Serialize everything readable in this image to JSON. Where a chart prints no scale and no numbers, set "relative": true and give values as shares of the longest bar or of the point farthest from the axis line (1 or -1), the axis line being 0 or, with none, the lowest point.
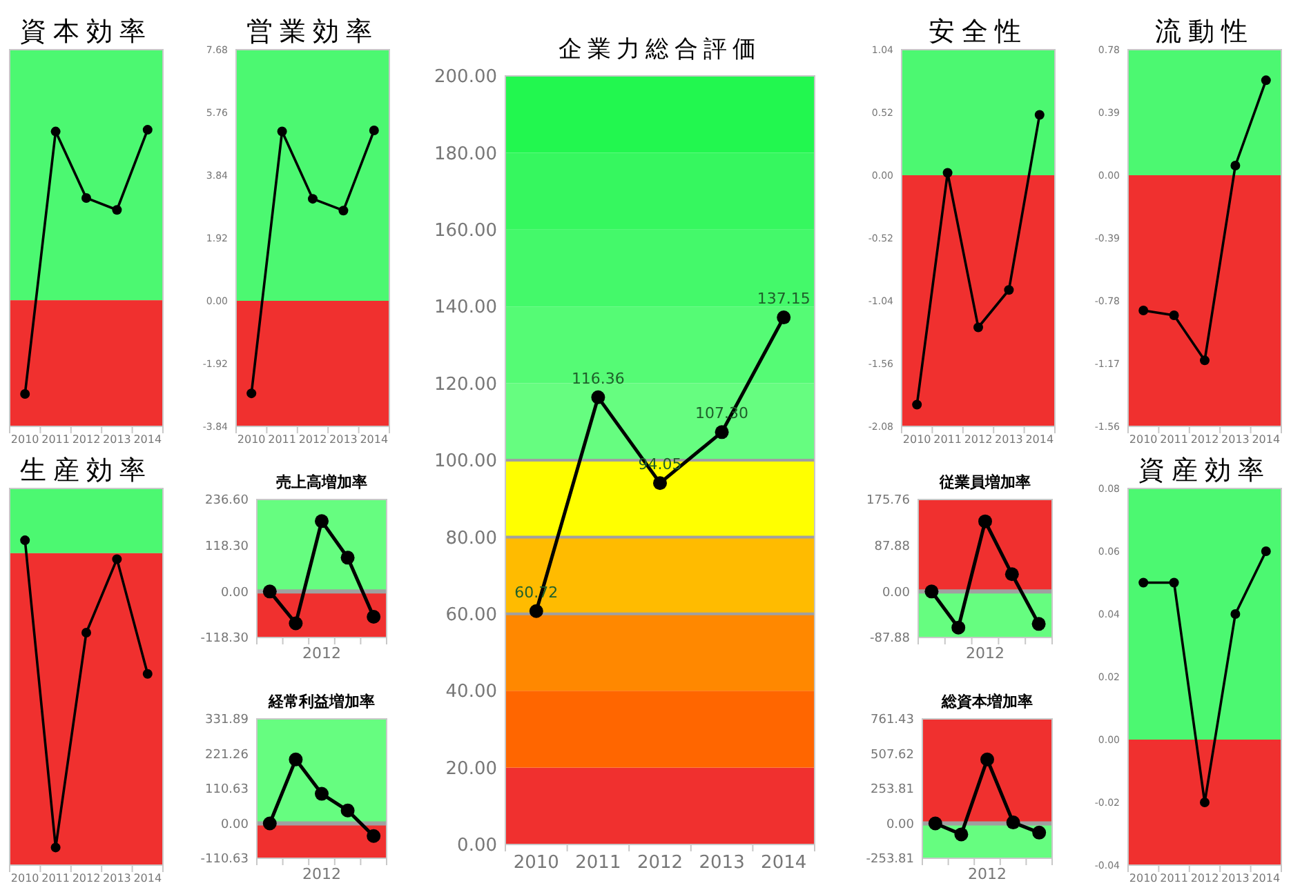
{
  "chart_data": [
    {
      "type": "line",
      "title": "資本効率",
      "relative": true,
      "tick_labels": "x",
      "categories": [
        "2010",
        "2011",
        "2012",
        "2013",
        "2014"
      ],
      "values": [
        -0.55,
        0.99,
        0.6,
        0.53,
        1.0
      ],
      "color": "#000000",
      "marker": "circle",
      "bands": [
        {
          "axis": "y",
          "from": 0,
          "to": 1.47,
          "color": "#4cf871"
        },
        {
          "axis": "y",
          "from": -0.74,
          "to": 0,
          "color": "#f0302f"
        }
      ]
    },
    {
      "type": "line",
      "title": "営業効率",
      "categories": [
        "2010",
        "2011",
        "2012",
        "2013",
        "2014"
      ],
      "values": [
        -2.83,
        5.18,
        3.12,
        2.76,
        5.21
      ],
      "color": "#000000",
      "marker": "circle",
      "ylim": [
        -3.84,
        7.68
      ],
      "yticks": [
        {
          "value": -3.84,
          "label": "-3.84"
        },
        {
          "value": -1.92,
          "label": "-1.92"
        },
        {
          "value": 0,
          "label": "0.00"
        },
        {
          "value": 1.92,
          "label": "1.92"
        },
        {
          "value": 3.84,
          "label": "3.84"
        },
        {
          "value": 5.76,
          "label": "5.76"
        },
        {
          "value": 7.68,
          "label": "7.68"
        }
      ],
      "bands": [
        {
          "axis": "y",
          "from": 0,
          "to": 7.68,
          "color": "#4cf871"
        },
        {
          "axis": "y",
          "from": -3.84,
          "to": 0,
          "color": "#f0302f"
        }
      ]
    },
    {
      "type": "line",
      "title": "企業力総合評価",
      "categories": [
        "2010",
        "2011",
        "2012",
        "2013",
        "2014"
      ],
      "values": [
        60.72,
        116.36,
        94.05,
        107.3,
        137.15
      ],
      "value_labels": [
        "60.72",
        "116.36",
        "94.05",
        "107.30",
        "137.15"
      ],
      "color": "#000000",
      "marker": "circle",
      "ylim": [
        0,
        200
      ],
      "yticks": [
        {
          "value": 0,
          "label": "0.00"
        },
        {
          "value": 20,
          "label": "20.00"
        },
        {
          "value": 40,
          "label": "40.00"
        },
        {
          "value": 60,
          "label": "60.00"
        },
        {
          "value": 80,
          "label": "80.00"
        },
        {
          "value": 100,
          "label": "100.00"
        },
        {
          "value": 120,
          "label": "120.00"
        },
        {
          "value": 140,
          "label": "140.00"
        },
        {
          "value": 160,
          "label": "160.00"
        },
        {
          "value": 180,
          "label": "180.00"
        },
        {
          "value": 200,
          "label": "200.00"
        }
      ],
      "bands": [
        {
          "axis": "y",
          "from": 0,
          "to": 20,
          "color": "#f0302f"
        },
        {
          "axis": "y",
          "from": 20,
          "to": 40,
          "color": "#ff6600"
        },
        {
          "axis": "y",
          "from": 40,
          "to": 60,
          "color": "#ff8800"
        },
        {
          "axis": "y",
          "from": 60,
          "to": 80,
          "color": "#ffbb00"
        },
        {
          "axis": "y",
          "from": 80,
          "to": 100,
          "color": "#ffff00"
        },
        {
          "axis": "y",
          "from": 100,
          "to": 120,
          "color": "#66fd80"
        },
        {
          "axis": "y",
          "from": 120,
          "to": 140,
          "color": "#55fb75"
        },
        {
          "axis": "y",
          "from": 140,
          "to": 160,
          "color": "#44f96a"
        },
        {
          "axis": "y",
          "from": 160,
          "to": 180,
          "color": "#36f75f"
        },
        {
          "axis": "y",
          "from": 180,
          "to": 200,
          "color": "#22f74f"
        }
      ],
      "ref_lines": [
        {
          "axis": "y",
          "value": 60,
          "color": "#a0a0a0"
        },
        {
          "axis": "y",
          "value": 80,
          "color": "#a0a0a0"
        },
        {
          "axis": "y",
          "value": 100,
          "color": "#a0a0a0"
        }
      ]
    },
    {
      "type": "line",
      "title": "安全性",
      "categories": [
        "2010",
        "2011",
        "2012",
        "2013",
        "2014"
      ],
      "values": [
        -1.9,
        0.02,
        -1.26,
        -0.95,
        0.5
      ],
      "color": "#000000",
      "marker": "circle",
      "ylim": [
        -2.08,
        1.04
      ],
      "yticks": [
        {
          "value": -2.08,
          "label": "-2.08"
        },
        {
          "value": -1.56,
          "label": "-1.56"
        },
        {
          "value": -1.04,
          "label": "-1.04"
        },
        {
          "value": -0.52,
          "label": "-0.52"
        },
        {
          "value": 0,
          "label": "0.00"
        },
        {
          "value": 0.52,
          "label": "0.52"
        },
        {
          "value": 1.04,
          "label": "1.04"
        }
      ],
      "bands": [
        {
          "axis": "y",
          "from": 0,
          "to": 1.04,
          "color": "#4cf871"
        },
        {
          "axis": "y",
          "from": -2.08,
          "to": 0,
          "color": "#f0302f"
        }
      ]
    },
    {
      "type": "line",
      "title": "流動性",
      "categories": [
        "2010",
        "2011",
        "2012",
        "2013",
        "2014"
      ],
      "values": [
        -0.84,
        -0.87,
        -1.15,
        0.06,
        0.59
      ],
      "color": "#000000",
      "marker": "circle",
      "ylim": [
        -1.56,
        0.78
      ],
      "yticks": [
        {
          "value": -1.56,
          "label": "-1.56"
        },
        {
          "value": -1.17,
          "label": "-1.17"
        },
        {
          "value": -0.78,
          "label": "-0.78"
        },
        {
          "value": -0.39,
          "label": "-0.39"
        },
        {
          "value": 0,
          "label": "0.00"
        },
        {
          "value": 0.39,
          "label": "0.39"
        },
        {
          "value": 0.78,
          "label": "0.78"
        }
      ],
      "bands": [
        {
          "axis": "y",
          "from": 0,
          "to": 0.78,
          "color": "#4cf871"
        },
        {
          "axis": "y",
          "from": -1.56,
          "to": 0,
          "color": "#f0302f"
        }
      ]
    },
    {
      "type": "line",
      "title": "生産効率",
      "relative": true,
      "tick_labels": "x",
      "categories": [
        "2010",
        "2011",
        "2012",
        "2013",
        "2014"
      ],
      "values": [
        0.044,
        -1,
        -0.27,
        -0.02,
        -0.41
      ],
      "color": "#000000",
      "marker": "circle",
      "bands": [
        {
          "axis": "y",
          "from": 0,
          "to": 0.22,
          "color": "#4cf871"
        },
        {
          "axis": "y",
          "from": -1.06,
          "to": 0,
          "color": "#f0302f"
        }
      ]
    },
    {
      "type": "line",
      "title": "売上高増加率",
      "categories": [
        null,
        null,
        "2012",
        null,
        null
      ],
      "values": [
        0,
        -82,
        181,
        87,
        -65
      ],
      "color": "#000000",
      "marker": "circle",
      "ylim": [
        -118.3,
        236.6
      ],
      "yticks": [
        {
          "value": -118.3,
          "label": "-118.30"
        },
        {
          "value": 0,
          "label": "0.00"
        },
        {
          "value": 118.3,
          "label": "118.30"
        },
        {
          "value": 236.6,
          "label": "236.60"
        }
      ],
      "bands": [
        {
          "axis": "y",
          "from": 0,
          "to": 236.6,
          "color": "#66fd80"
        },
        {
          "axis": "y",
          "from": -118.3,
          "to": 0,
          "color": "#f0302f"
        }
      ],
      "ref_lines": [
        {
          "axis": "y",
          "value": 0,
          "color": "#a0a0a0"
        }
      ]
    },
    {
      "type": "line",
      "title": "従業員増加率",
      "categories": [
        null,
        null,
        "2012",
        null,
        null
      ],
      "values": [
        0,
        -69,
        134,
        33,
        -62
      ],
      "color": "#000000",
      "marker": "circle",
      "ylim": [
        -87.88,
        175.76
      ],
      "yticks": [
        {
          "value": -87.88,
          "label": "-87.88"
        },
        {
          "value": 0,
          "label": "0.00"
        },
        {
          "value": 87.88,
          "label": "87.88"
        },
        {
          "value": 175.76,
          "label": "175.76"
        }
      ],
      "bands": [
        {
          "axis": "y",
          "from": 0,
          "to": 175.76,
          "color": "#f0302f"
        },
        {
          "axis": "y",
          "from": -87.88,
          "to": 0,
          "color": "#66fd80"
        }
      ],
      "ref_lines": [
        {
          "axis": "y",
          "value": 0,
          "color": "#a0a0a0"
        }
      ]
    },
    {
      "type": "line",
      "title": "資産効率",
      "categories": [
        "2010",
        "2011",
        "2012",
        "2013",
        "2014"
      ],
      "values": [
        0.05,
        0.05,
        -0.02,
        0.04,
        0.06
      ],
      "color": "#000000",
      "marker": "circle",
      "ylim": [
        -0.04,
        0.08
      ],
      "yticks": [
        {
          "value": -0.04,
          "label": "-0.04"
        },
        {
          "value": -0.02,
          "label": "-0.02"
        },
        {
          "value": 0,
          "label": "0.00"
        },
        {
          "value": 0.02,
          "label": "0.02"
        },
        {
          "value": 0.04,
          "label": "0.04"
        },
        {
          "value": 0.06,
          "label": "0.06"
        },
        {
          "value": 0.08,
          "label": "0.08"
        }
      ],
      "bands": [
        {
          "axis": "y",
          "from": 0,
          "to": 0.08,
          "color": "#4cf871"
        },
        {
          "axis": "y",
          "from": -0.04,
          "to": 0,
          "color": "#f0302f"
        }
      ]
    },
    {
      "type": "line",
      "title": "経常利益増加率",
      "categories": [
        null,
        null,
        "2012",
        null,
        null
      ],
      "values": [
        0,
        203,
        94,
        41,
        -40
      ],
      "color": "#000000",
      "marker": "circle",
      "ylim": [
        -110.63,
        331.89
      ],
      "yticks": [
        {
          "value": -110.63,
          "label": "-110.63"
        },
        {
          "value": 0,
          "label": "0.00"
        },
        {
          "value": 110.63,
          "label": "110.63"
        },
        {
          "value": 221.26,
          "label": "221.26"
        },
        {
          "value": 331.89,
          "label": "331.89"
        }
      ],
      "bands": [
        {
          "axis": "y",
          "from": 0,
          "to": 331.89,
          "color": "#66fd80"
        },
        {
          "axis": "y",
          "from": -110.63,
          "to": 0,
          "color": "#f0302f"
        }
      ],
      "ref_lines": [
        {
          "axis": "y",
          "value": 0,
          "color": "#a0a0a0"
        }
      ]
    },
    {
      "type": "line",
      "title": "総資本増加率",
      "categories": [
        null,
        null,
        "2012",
        null,
        null
      ],
      "values": [
        0,
        -80,
        466,
        7,
        -67
      ],
      "color": "#000000",
      "marker": "circle",
      "ylim": [
        -253.81,
        761.43
      ],
      "yticks": [
        {
          "value": -253.81,
          "label": "-253.81"
        },
        {
          "value": 0,
          "label": "0.00"
        },
        {
          "value": 253.81,
          "label": "253.81"
        },
        {
          "value": 507.62,
          "label": "507.62"
        },
        {
          "value": 761.43,
          "label": "761.43"
        }
      ],
      "bands": [
        {
          "axis": "y",
          "from": 0,
          "to": 761.43,
          "color": "#f0302f"
        },
        {
          "axis": "y",
          "from": -253.81,
          "to": 0,
          "color": "#66fd80"
        }
      ],
      "ref_lines": [
        {
          "axis": "y",
          "value": 0,
          "color": "#a0a0a0"
        }
      ]
    }
  ]
}
